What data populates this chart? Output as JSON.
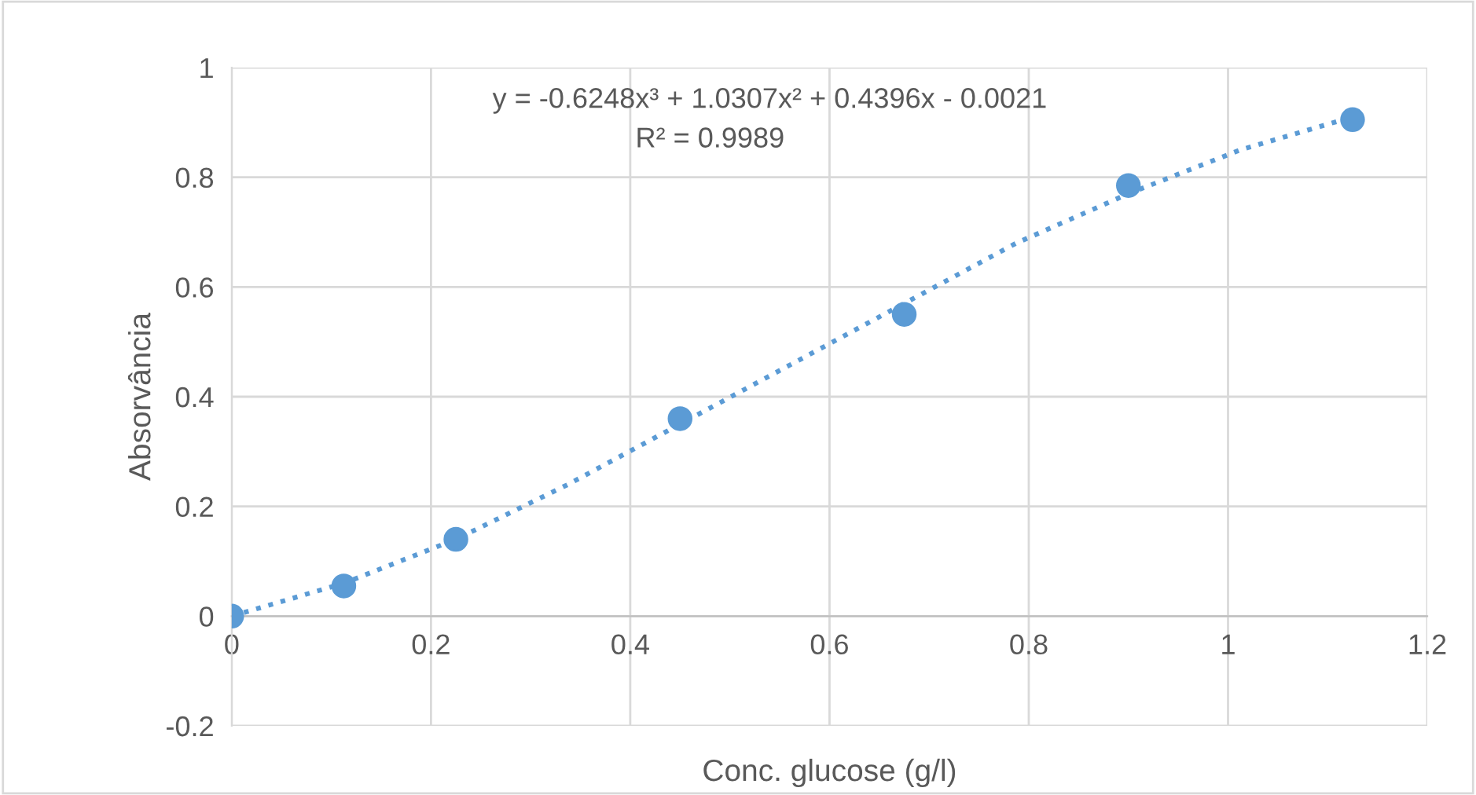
{
  "chart_data": {
    "type": "scatter",
    "xlabel": "Conc. glucose (g/l)",
    "ylabel": "Absorvância",
    "series": [
      {
        "marker": "circle",
        "color": "#5b9bd5",
        "x": [
          0,
          0.1125,
          0.225,
          0.45,
          0.675,
          0.9,
          1.125
        ],
        "values": [
          0,
          0.055,
          0.14,
          0.36,
          0.55,
          0.785,
          0.905
        ]
      },
      {
        "type": "line",
        "color": "#5b9bd5",
        "line_style": "dotted",
        "x": [
          0,
          0.1125,
          0.225,
          0.3375,
          0.45,
          0.5625,
          0.675,
          0.7875,
          0.9,
          1.0125,
          1.125
        ],
        "values": [
          0,
          0.06,
          0.14,
          0.24,
          0.35,
          0.46,
          0.57,
          0.68,
          0.77,
          0.85,
          0.91
        ]
      }
    ],
    "annotations": [
      "y = -0.6248x³ + 1.0307x² + 0.4396x - 0.0021",
      "R² = 0.9989"
    ],
    "xlim": [
      0,
      1.2
    ],
    "xticks": [
      0,
      0.2,
      0.4,
      0.6,
      0.8,
      1,
      1.2
    ],
    "ylim": [
      -0.2,
      1
    ],
    "yticks": [
      -0.2,
      0,
      0.2,
      0.4,
      0.6,
      0.8,
      1
    ],
    "grid": true
  }
}
